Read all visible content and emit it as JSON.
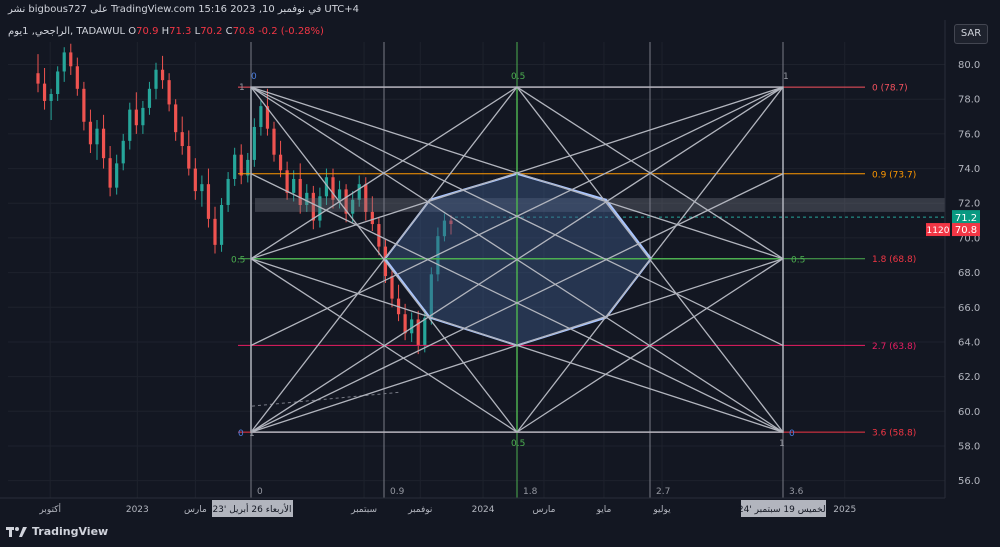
{
  "header": {
    "text": "نشر bigbous727 على TradingView.com 15:16 2023 ,10 في نوفمبر UTC+4"
  },
  "legend": {
    "symbol": "الراجحي, 1يوم, TADAWUL",
    "open_label": "O",
    "open": "70.9",
    "high_label": "H",
    "high": "71.3",
    "low_label": "L",
    "low": "70.2",
    "close_label": "C",
    "close": "70.8",
    "change": "-0.2 (-0.28%)"
  },
  "currency_button": "SAR",
  "footer": {
    "brand": "TradingView"
  },
  "colors": {
    "background": "#131722",
    "up": "#26a69a",
    "down": "#ef5350",
    "fib_0": "#f7525f",
    "fib_09": "#ff9800",
    "fib_18": "#f23645",
    "fib_27": "#e91e63",
    "fib_36": "#f23645",
    "gann_lines": "#b2b5be",
    "octagon_fill": "#3d5a8a",
    "octagon_stroke": "#a9c5ff",
    "green_lines": "#4caf50",
    "price_up_tag": "#089981",
    "price_down_tag": "#f23645"
  },
  "chart_data": {
    "type": "candlestick",
    "y_axis": {
      "ticks": [
        "80.0",
        "78.0",
        "76.0",
        "74.0",
        "72.0",
        "70.0",
        "68.0",
        "66.0",
        "64.0",
        "62.0",
        "60.0",
        "58.0",
        "56.0"
      ],
      "range": [
        55,
        81.3
      ]
    },
    "x_axis": {
      "ticks": [
        {
          "label": "أكتوبر",
          "t": 0.045
        },
        {
          "label": "2023",
          "t": 0.138
        },
        {
          "label": "مارس",
          "t": 0.2
        },
        {
          "label": "سبتمبر",
          "t": 0.38
        },
        {
          "label": "نوفمبر",
          "t": 0.44
        },
        {
          "label": "2024",
          "t": 0.507
        },
        {
          "label": "مارس",
          "t": 0.572
        },
        {
          "label": "مايو",
          "t": 0.636
        },
        {
          "label": "يوليو",
          "t": 0.698
        },
        {
          "label": "2025",
          "t": 0.893
        }
      ],
      "highlight_left": "الأربعاء 26 أبريل '23",
      "highlight_right": "الخميس 19 سبتمبر '24"
    },
    "price_tags": {
      "current": "71.2",
      "close": "70.8",
      "countdown": "1120"
    },
    "fib_levels": [
      {
        "label": "0 (78.7)",
        "value": 78.7
      },
      {
        "label": "0.9 (73.7)",
        "value": 73.7
      },
      {
        "label": "1.8 (68.8)",
        "value": 68.8
      },
      {
        "label": "2.7 (63.8)",
        "value": 63.8
      },
      {
        "label": "3.6 (58.8)",
        "value": 58.8
      }
    ],
    "time_fib_labels": [
      "0",
      "0.9",
      "1.8",
      "2.7",
      "3.6"
    ],
    "box_corner_labels": {
      "top_left": "0",
      "top_left_left": "1",
      "top_center": "0.5",
      "top_right": "1",
      "mid_left": "0.5",
      "mid_right": "0.5",
      "bottom_left_left": "0",
      "bottom_left": "1",
      "bottom_center": "0.5",
      "bottom_right": "1",
      "bottom_right_right": "0"
    },
    "candles": [
      [
        79.5,
        80.6,
        78.4,
        78.9
      ],
      [
        78.9,
        79.8,
        77.4,
        77.9
      ],
      [
        77.9,
        78.6,
        76.8,
        78.3
      ],
      [
        78.3,
        79.9,
        77.9,
        79.6
      ],
      [
        79.6,
        81.0,
        79.0,
        80.7
      ],
      [
        80.7,
        81.2,
        79.4,
        79.9
      ],
      [
        79.9,
        80.4,
        78.2,
        78.6
      ],
      [
        78.6,
        79.0,
        76.2,
        76.7
      ],
      [
        76.7,
        77.4,
        74.9,
        75.4
      ],
      [
        75.4,
        76.8,
        74.5,
        76.3
      ],
      [
        76.3,
        77.1,
        74.0,
        74.6
      ],
      [
        74.6,
        75.3,
        72.4,
        72.9
      ],
      [
        72.9,
        74.8,
        72.5,
        74.3
      ],
      [
        74.3,
        76.0,
        73.9,
        75.6
      ],
      [
        75.6,
        77.8,
        75.1,
        77.4
      ],
      [
        77.4,
        78.4,
        76.0,
        76.5
      ],
      [
        76.5,
        77.9,
        76.0,
        77.5
      ],
      [
        77.5,
        79.0,
        77.1,
        78.6
      ],
      [
        78.6,
        80.1,
        78.0,
        79.7
      ],
      [
        79.7,
        80.5,
        78.6,
        79.1
      ],
      [
        79.1,
        79.5,
        77.3,
        77.7
      ],
      [
        77.7,
        78.0,
        75.6,
        76.1
      ],
      [
        76.1,
        77.0,
        74.8,
        75.3
      ],
      [
        75.3,
        76.2,
        73.6,
        74.0
      ],
      [
        74.0,
        74.6,
        72.2,
        72.7
      ],
      [
        72.7,
        73.6,
        71.8,
        73.1
      ],
      [
        73.1,
        74.0,
        70.6,
        71.1
      ],
      [
        71.1,
        71.8,
        69.1,
        69.6
      ],
      [
        69.6,
        72.3,
        69.2,
        71.9
      ],
      [
        71.9,
        73.8,
        71.5,
        73.4
      ],
      [
        73.4,
        75.2,
        73.0,
        74.8
      ],
      [
        74.8,
        75.4,
        73.1,
        73.6
      ],
      [
        73.6,
        74.9,
        73.2,
        74.5
      ],
      [
        74.5,
        76.9,
        74.1,
        76.4
      ],
      [
        76.4,
        78.0,
        75.9,
        77.6
      ],
      [
        77.6,
        78.6,
        75.9,
        76.3
      ],
      [
        76.3,
        76.7,
        74.4,
        74.8
      ],
      [
        74.8,
        75.6,
        73.5,
        73.9
      ],
      [
        73.9,
        74.4,
        72.2,
        72.6
      ],
      [
        72.6,
        73.9,
        72.1,
        73.4
      ],
      [
        73.4,
        74.3,
        71.4,
        71.9
      ],
      [
        71.9,
        73.1,
        71.5,
        72.6
      ],
      [
        72.6,
        73.0,
        70.5,
        71.0
      ],
      [
        71.0,
        72.9,
        70.6,
        72.4
      ],
      [
        72.4,
        74.0,
        71.9,
        73.5
      ],
      [
        73.5,
        74.0,
        71.7,
        72.2
      ],
      [
        72.2,
        73.3,
        71.7,
        72.8
      ],
      [
        72.8,
        73.1,
        70.9,
        71.4
      ],
      [
        71.4,
        72.7,
        70.9,
        72.2
      ],
      [
        72.2,
        73.6,
        71.8,
        73.1
      ],
      [
        73.1,
        73.5,
        71.0,
        71.5
      ],
      [
        71.5,
        72.4,
        70.4,
        70.8
      ],
      [
        70.8,
        71.2,
        69.0,
        69.5
      ],
      [
        69.5,
        69.9,
        67.4,
        67.8
      ],
      [
        67.8,
        68.2,
        66.0,
        66.5
      ],
      [
        66.5,
        67.3,
        65.2,
        65.6
      ],
      [
        65.6,
        66.2,
        64.1,
        64.5
      ],
      [
        64.5,
        65.7,
        64.0,
        65.3
      ],
      [
        65.3,
        65.8,
        63.3,
        63.8
      ],
      [
        63.8,
        65.9,
        63.4,
        65.4
      ],
      [
        65.4,
        68.3,
        65.0,
        67.9
      ],
      [
        67.9,
        70.6,
        67.5,
        70.1
      ],
      [
        70.1,
        71.4,
        69.8,
        71.0
      ],
      [
        71.0,
        71.3,
        70.2,
        70.8
      ]
    ]
  }
}
